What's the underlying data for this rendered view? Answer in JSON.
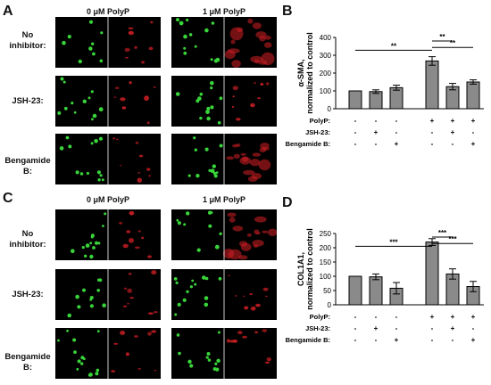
{
  "panels": {
    "A": {
      "letter": "A",
      "col_headers": [
        "0 μM PolyP",
        "1 μM PolyP"
      ],
      "row_labels": [
        [
          "No",
          "inhibitor:"
        ],
        [
          "JSH-23:"
        ],
        [
          "Bengamide B:"
        ]
      ]
    },
    "B": {
      "letter": "B"
    },
    "C": {
      "letter": "C",
      "col_headers": [
        "0 μM PolyP",
        "1 μM PolyP"
      ],
      "row_labels": [
        [
          "No",
          "inhibitor:"
        ],
        [
          "JSH-23:"
        ],
        [
          "Bengamide B:"
        ]
      ]
    },
    "D": {
      "letter": "D"
    }
  },
  "colors": {
    "nucleus_green": "#39d43a",
    "stain_red": "#d21f25",
    "bar_fill": "#8a8a8a"
  },
  "chart_data": [
    {
      "type": "bar",
      "panel": "B",
      "ylabel": "α-SMA, normalized to control",
      "ylim": [
        0,
        400
      ],
      "yticks": [
        0,
        100,
        200,
        300,
        400
      ],
      "values": [
        100,
        96,
        118,
        268,
        124,
        150
      ],
      "errors": [
        0,
        10,
        14,
        24,
        18,
        12
      ],
      "conditions": {
        "rows": [
          "PolyP:",
          "JSH-23:",
          "Bengamide B:"
        ],
        "signs": [
          [
            "-",
            "-",
            "-",
            "+",
            "+",
            "+"
          ],
          [
            "-",
            "+",
            "-",
            "-",
            "+",
            "-"
          ],
          [
            "-",
            "-",
            "+",
            "-",
            "-",
            "+"
          ]
        ]
      },
      "significance": [
        {
          "from": 0,
          "to": 3,
          "label": "**"
        },
        {
          "from": 3,
          "to": 4,
          "label": "**"
        },
        {
          "from": 3,
          "to": 5,
          "label": "**"
        }
      ]
    },
    {
      "type": "bar",
      "panel": "D",
      "ylabel": "COL1A1, normalized to control",
      "ylim": [
        0,
        250
      ],
      "yticks": [
        0,
        50,
        100,
        150,
        200,
        250
      ],
      "values": [
        100,
        98,
        58,
        220,
        108,
        64
      ],
      "errors": [
        0,
        10,
        20,
        12,
        18,
        18
      ],
      "conditions": {
        "rows": [
          "PolyP:",
          "JSH-23:",
          "Bengamide B:"
        ],
        "signs": [
          [
            "-",
            "-",
            "-",
            "+",
            "+",
            "+"
          ],
          [
            "-",
            "+",
            "-",
            "-",
            "+",
            "-"
          ],
          [
            "-",
            "-",
            "+",
            "-",
            "-",
            "+"
          ]
        ]
      },
      "significance": [
        {
          "from": 0,
          "to": 3,
          "label": "***"
        },
        {
          "from": 3,
          "to": 4,
          "label": "***"
        },
        {
          "from": 3,
          "to": 5,
          "label": "***"
        }
      ]
    }
  ]
}
